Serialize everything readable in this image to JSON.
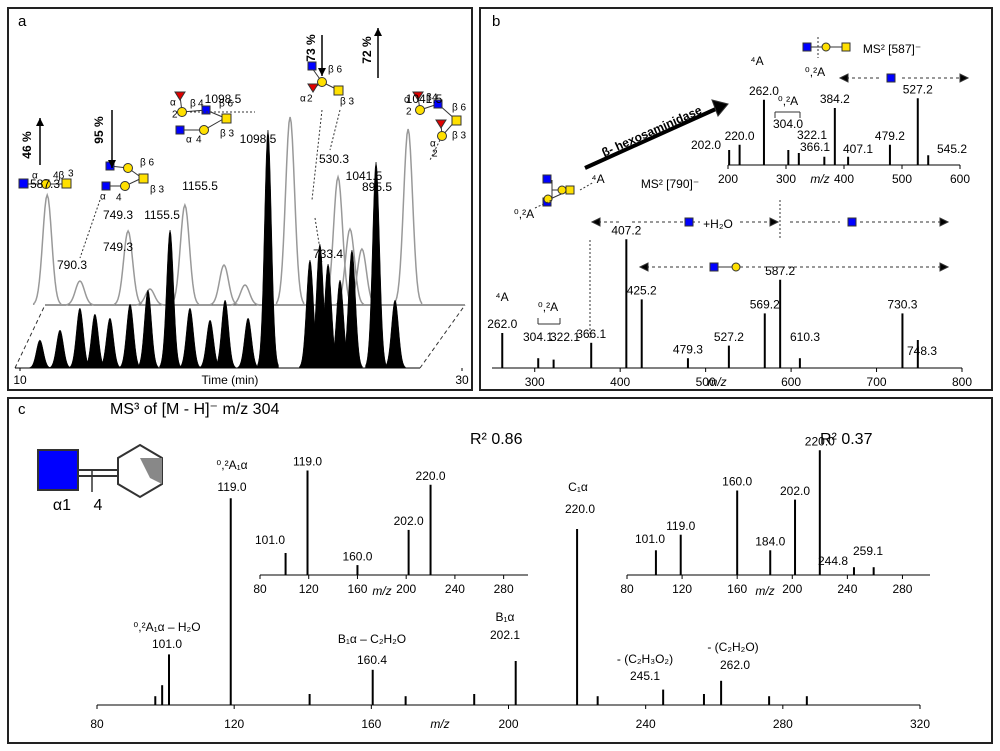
{
  "chart_data": [
    {
      "type": "chromatogram",
      "panel": "a",
      "xlabel": "Time (min)",
      "xlim": [
        10,
        30
      ],
      "xticks": [
        10,
        30
      ],
      "ylim": [
        0,
        130
      ],
      "series": [
        {
          "color": "#000000",
          "x": [
            10.9,
            11.81,
            12.71,
            13.39,
            14.07,
            14.98,
            15.79,
            16.79,
            17.69,
            18.6,
            19.28,
            20.32,
            21.22,
            23.12,
            23.57,
            23.94,
            24.48,
            25.02,
            26.11,
            26.97
          ],
          "values": [
            14,
            19,
            30,
            27,
            25,
            32,
            39,
            69,
            30,
            24,
            34,
            25,
            119,
            54,
            62,
            52,
            44,
            59,
            103,
            34
          ]
        },
        {
          "color": "#999999",
          "x": [
            10.1,
            11.58,
            13.76,
            14.75,
            16.33,
            18.1,
            19.05,
            21.09,
            23.26,
            23.8,
            24.34,
            26.43
          ],
          "values": [
            55,
            12,
            37,
            8,
            50,
            20,
            10,
            94,
            64,
            38,
            28,
            88
          ]
        }
      ],
      "peak_labels": [
        "587.3",
        "749.3",
        "1155.5",
        "1155.5",
        "1098.5",
        "1098.5",
        "749.3",
        "790.3",
        "733.4",
        "530.3",
        "895.5",
        "1041.5",
        "1041.5"
      ],
      "percentages": [
        "46 %",
        "95 %",
        "73 %",
        "72 %"
      ],
      "glycans": [
        [
          "α",
          "4β",
          "3"
        ],
        [
          "α",
          "4",
          "β 6",
          "β 3"
        ],
        [
          "α",
          "2",
          "β",
          "4",
          "α",
          "4",
          "β 6",
          "β 3"
        ],
        [
          "α",
          "2",
          "β 6",
          "β 3"
        ],
        [
          "α",
          "2",
          "β",
          "4",
          "β 6",
          "α",
          "2",
          "β 3"
        ]
      ]
    },
    {
      "type": "spectrum",
      "panel": "b",
      "xlabel": "m/z",
      "xlim": [
        250,
        800
      ],
      "xticks": [
        300,
        400,
        500,
        600,
        700,
        800
      ],
      "ylim": [
        0,
        100
      ],
      "color": "#000000",
      "x": [
        262.0,
        304.1,
        322.1,
        366.1,
        407.2,
        425.2,
        479.3,
        527.2,
        569.2,
        587.2,
        610.3,
        730.3,
        748.3
      ],
      "x_labels": [
        "262.0",
        "304.1",
        "322.1",
        "366.1",
        "407.2",
        "425.2",
        "479.3",
        "527.2",
        "569.2",
        "587.2",
        "610.3",
        "730.3",
        "748.3"
      ],
      "values": [
        25,
        7,
        6,
        18,
        92,
        49,
        7,
        16,
        39,
        63,
        7,
        39,
        20
      ],
      "annotations": [
        "β- hexosaminidase",
        "MS² [790]⁻",
        "⁴A",
        "⁰,²A",
        "+H₂O",
        "⁴A",
        "⁰,²A"
      ]
    },
    {
      "type": "spectrum",
      "xlabel": "m/z",
      "xlim": [
        200,
        600
      ],
      "xticks": [
        200,
        300,
        400,
        500,
        600
      ],
      "ylim": [
        0,
        100
      ],
      "color": "#000000",
      "x": [
        202.0,
        220.0,
        262.0,
        304.0,
        322.1,
        366.1,
        384.2,
        407.1,
        479.2,
        527.2,
        545.2
      ],
      "x_labels": [
        "202.0",
        "220.0",
        "262.0",
        "304.0",
        "322.1",
        "366.1",
        "384.2",
        "407.1",
        "479.2",
        "527.2",
        "545.2"
      ],
      "values": [
        20,
        27,
        87,
        20,
        16,
        11,
        76,
        11,
        27,
        89,
        13
      ],
      "annotations": [
        "⁴A",
        "MS² [587]⁻",
        "⁰,²A",
        "⁰,²A"
      ]
    },
    {
      "type": "spectrum",
      "panel": "c",
      "title": "MS³ of [M - H]⁻ m/z 304",
      "xlabel": "m/z",
      "xlim": [
        80,
        320
      ],
      "xticks": [
        80,
        120,
        160,
        200,
        240,
        280,
        320
      ],
      "ylim": [
        0,
        100
      ],
      "color": "#000000",
      "x": [
        97,
        99,
        101.0,
        119.0,
        142,
        160.4,
        170,
        190,
        202.1,
        220.0,
        226,
        245.1,
        257,
        262.0,
        276,
        287
      ],
      "x_labels": [
        null,
        null,
        "101.0",
        "119.0",
        null,
        "160.4",
        null,
        null,
        "202.1",
        "220.0",
        null,
        "245.1",
        null,
        "262.0",
        null,
        null
      ],
      "values": [
        4,
        9,
        23,
        94,
        5,
        16,
        4,
        5,
        20,
        80,
        4,
        7,
        5,
        11,
        4,
        4
      ],
      "annotations": [
        "⁰,²A₁α – H₂O",
        "⁰,²A₁α",
        "B₁α – C₂H₂O",
        "B₁α",
        "C₁α",
        "- (C₂H₃O₂)",
        "- (C₂H₂O)"
      ],
      "linkage": [
        "α1",
        "4"
      ]
    },
    {
      "type": "spectrum",
      "title": "R² 0.86",
      "xlabel": "m/z",
      "xlim": [
        80,
        300
      ],
      "xticks": [
        80,
        120,
        160,
        200,
        240,
        280
      ],
      "ylim": [
        0,
        100
      ],
      "color": "#000000",
      "x": [
        101.0,
        119.0,
        160.0,
        202.0,
        220.0
      ],
      "x_labels": [
        "101.0",
        "119.0",
        "160.0",
        "202.0",
        "220.0"
      ],
      "values": [
        20,
        95,
        9,
        41,
        82
      ]
    },
    {
      "type": "spectrum",
      "title": "R² 0.37",
      "xlabel": "m/z",
      "xlim": [
        80,
        300
      ],
      "xticks": [
        80,
        120,
        160,
        200,
        240,
        280
      ],
      "ylim": [
        0,
        100
      ],
      "color": "#000000",
      "x": [
        101.0,
        119.0,
        160.0,
        184.0,
        202.0,
        220.0,
        244.8,
        259.1
      ],
      "x_labels": [
        "101.0",
        "119.0",
        "160.0",
        "184.0",
        "202.0",
        "220.0",
        "244.8",
        "259.1"
      ],
      "values": [
        19,
        31,
        65,
        19,
        58,
        96,
        6,
        6
      ]
    }
  ]
}
